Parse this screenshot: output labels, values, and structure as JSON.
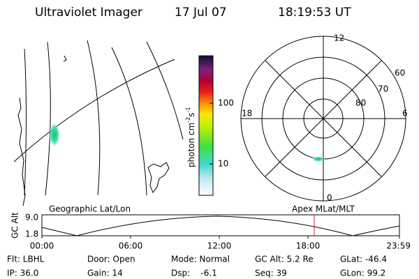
{
  "header": {
    "title": "Ultraviolet Imager",
    "date": "17 Jul 07",
    "time": "18:19:53 UT"
  },
  "colorbar": {
    "label": [
      "photon cm",
      "-2",
      "s",
      "-1"
    ],
    "ticks": [
      "100",
      "10"
    ]
  },
  "polar": {
    "clock": [
      "12",
      "18",
      "6",
      "0"
    ],
    "latitudes": [
      "60",
      "70",
      "80"
    ]
  },
  "timeline": {
    "left_title": "Geographic Lat/Lon",
    "right_title": "Apex MLat/MLT",
    "axis_label": "GC Alt",
    "yticks": [
      "9.0",
      "1.8"
    ],
    "times": [
      "00:00",
      "06:00",
      "12:00",
      "18:00",
      "23:59"
    ]
  },
  "info": {
    "rows": [
      [
        "Flt: LBHL",
        "Door: Open",
        "Mode: Normal",
        "GC Alt: 5.2 Re",
        "GLat: -46.4"
      ],
      [
        "IP: 36.0",
        "Gain: 14",
        "Dsp:    -6.1",
        "Seq: 39",
        "GLon: 99.2"
      ]
    ]
  }
}
